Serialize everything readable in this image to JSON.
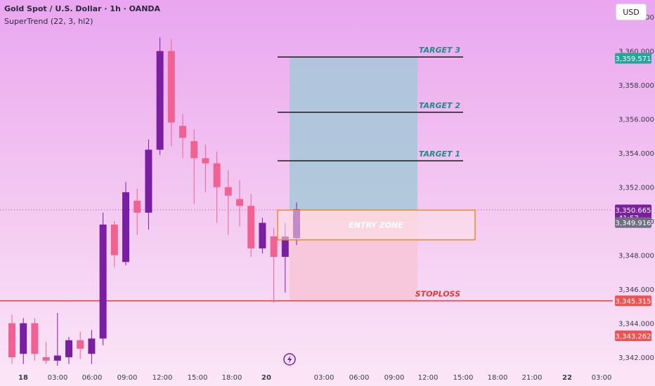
{
  "header": {
    "title": "Gold Spot / U.S. Dollar · 1h · OANDA",
    "indicator": "SuperTrend (22, 3, hl2)",
    "currency": "USD"
  },
  "colors": {
    "bull": "#7b1fa2",
    "bear": "#f06292",
    "target_line": "#1a1a1a",
    "target_text": "#1f8a8a",
    "stop_line": "#e53935",
    "stop_text": "#e53935",
    "profit_zone": "#a6c8d8",
    "loss_zone": "#f7c6d6",
    "entry_border": "#f08a24",
    "tag_green": "#26a69a",
    "tag_purple": "#7b1fa2",
    "tag_grey": "#6e6e80",
    "tag_red": "#ef5350"
  },
  "chart_data": {
    "type": "candlestick",
    "ylim": [
      3341.3,
      3363.0
    ],
    "price_ticks": [
      3342,
      3344,
      3346,
      3348,
      3350,
      3352,
      3354,
      3356,
      3358,
      3360,
      3362
    ],
    "x_ticks": [
      "18",
      "03:00",
      "06:00",
      "09:00",
      "12:00",
      "15:00",
      "18:00",
      "20",
      "03:00",
      "06:00",
      "09:00",
      "12:00",
      "15:00",
      "18:00",
      "21:00",
      "22",
      "03:00"
    ],
    "candles": [
      {
        "o": 3344.0,
        "h": 3344.5,
        "l": 3341.6,
        "c": 3342.0
      },
      {
        "o": 3342.2,
        "h": 3344.3,
        "l": 3341.6,
        "c": 3344.0
      },
      {
        "o": 3344.0,
        "h": 3344.3,
        "l": 3341.8,
        "c": 3342.2
      },
      {
        "o": 3342.0,
        "h": 3342.9,
        "l": 3341.6,
        "c": 3341.8
      },
      {
        "o": 3341.8,
        "h": 3344.6,
        "l": 3341.5,
        "c": 3342.1
      },
      {
        "o": 3342.0,
        "h": 3343.2,
        "l": 3341.6,
        "c": 3343.0
      },
      {
        "o": 3343.0,
        "h": 3343.5,
        "l": 3341.9,
        "c": 3342.5
      },
      {
        "o": 3342.2,
        "h": 3343.6,
        "l": 3341.6,
        "c": 3343.1
      },
      {
        "o": 3343.1,
        "h": 3350.5,
        "l": 3342.7,
        "c": 3349.8
      },
      {
        "o": 3349.8,
        "h": 3350.0,
        "l": 3347.3,
        "c": 3348.0
      },
      {
        "o": 3347.6,
        "h": 3352.3,
        "l": 3347.4,
        "c": 3351.7
      },
      {
        "o": 3351.2,
        "h": 3351.9,
        "l": 3349.2,
        "c": 3350.5
      },
      {
        "o": 3350.5,
        "h": 3354.8,
        "l": 3349.5,
        "c": 3354.2
      },
      {
        "o": 3354.2,
        "h": 3360.8,
        "l": 3353.9,
        "c": 3360.0
      },
      {
        "o": 3360.0,
        "h": 3360.7,
        "l": 3354.4,
        "c": 3355.8
      },
      {
        "o": 3355.6,
        "h": 3356.3,
        "l": 3353.7,
        "c": 3354.9
      },
      {
        "o": 3354.7,
        "h": 3355.4,
        "l": 3351.0,
        "c": 3353.7
      },
      {
        "o": 3353.7,
        "h": 3354.5,
        "l": 3351.7,
        "c": 3353.4
      },
      {
        "o": 3353.4,
        "h": 3354.1,
        "l": 3349.9,
        "c": 3352.0
      },
      {
        "o": 3352.0,
        "h": 3353.0,
        "l": 3349.2,
        "c": 3351.5
      },
      {
        "o": 3351.3,
        "h": 3352.4,
        "l": 3349.7,
        "c": 3350.9
      },
      {
        "o": 3350.9,
        "h": 3351.6,
        "l": 3347.9,
        "c": 3348.4
      },
      {
        "o": 3348.4,
        "h": 3350.2,
        "l": 3348.1,
        "c": 3349.9
      },
      {
        "o": 3349.1,
        "h": 3349.6,
        "l": 3345.2,
        "c": 3347.9
      },
      {
        "o": 3347.9,
        "h": 3349.9,
        "l": 3345.8,
        "c": 3349.1
      },
      {
        "o": 3349.0,
        "h": 3351.1,
        "l": 3348.6,
        "c": 3350.7
      }
    ],
    "levels": {
      "target1": 3353.55,
      "target2": 3356.4,
      "target3": 3359.65,
      "entry_top": 3350.65,
      "entry_bottom": 3348.9,
      "stoploss": 3345.315
    },
    "labels": {
      "target1": "TARGET 1",
      "target2": "TARGET 2",
      "target3": "TARGET 3",
      "entry": "ENTRY ZONE",
      "stoploss": "STOPLOSS"
    },
    "price_tags": [
      {
        "text": "3,359.571",
        "value": 3359.571,
        "color_key": "tag_green"
      },
      {
        "text": "3,350.665",
        "value": 3350.665,
        "color_key": "tag_purple",
        "sub": "41:57"
      },
      {
        "text": "3,349.916",
        "value": 3349.916,
        "color_key": "tag_grey"
      },
      {
        "text": "3,345.315",
        "value": 3345.315,
        "color_key": "tag_red"
      },
      {
        "text": "3,343.262",
        "value": 3343.262,
        "color_key": "tag_red"
      }
    ],
    "current_price": 3350.665
  }
}
